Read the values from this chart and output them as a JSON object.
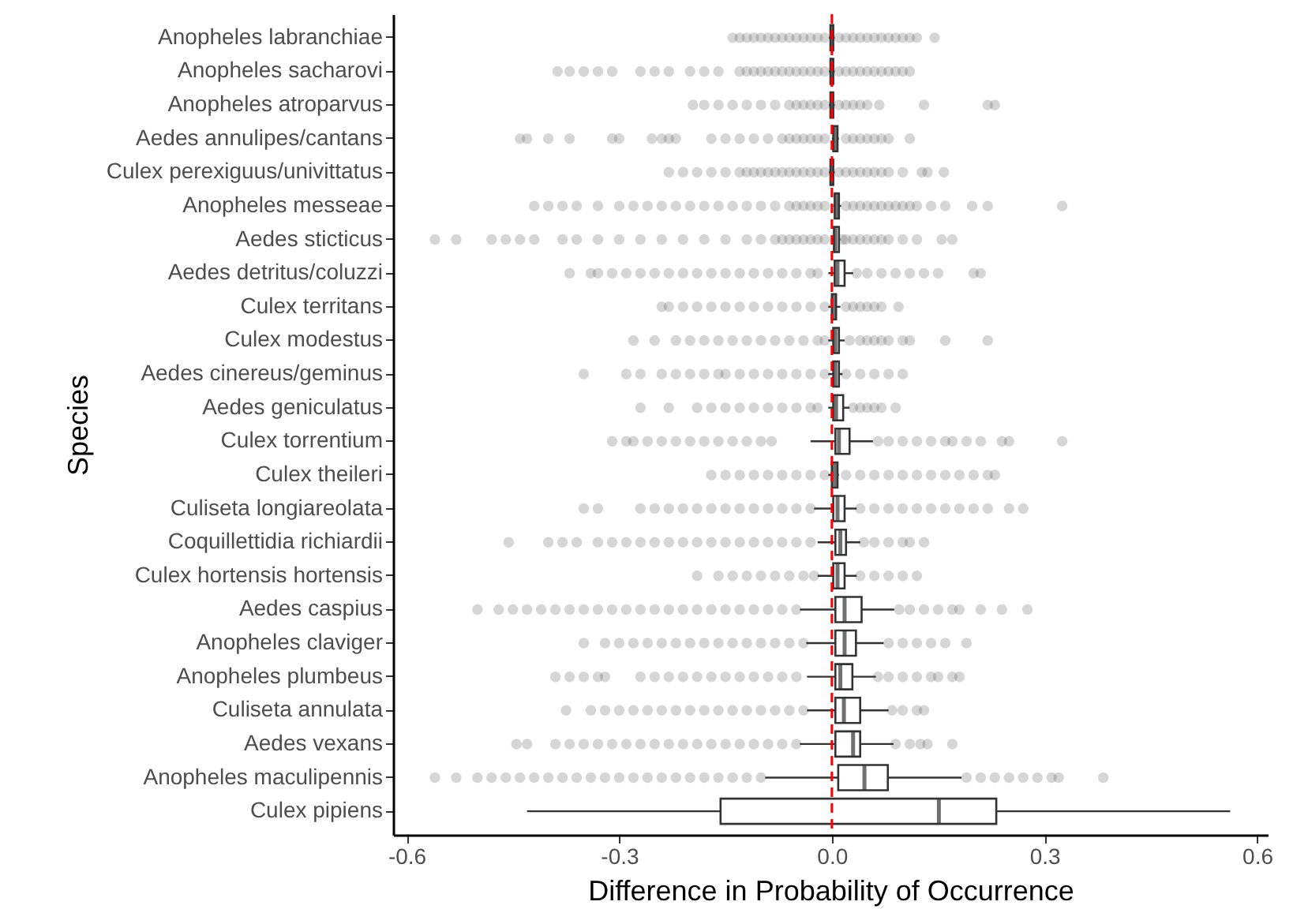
{
  "chart_data": {
    "type": "box",
    "orientation": "horizontal",
    "xlabel": "Difference in Probability of Occurrence",
    "ylabel": "Species",
    "categories": [
      "Anopheles labranchiae",
      "Anopheles sacharovi",
      "Anopheles atroparvus",
      "Aedes annulipes/cantans",
      "Culex perexiguus/univittatus",
      "Anopheles messeae",
      "Aedes sticticus",
      "Aedes detritus/coluzzi",
      "Culex territans",
      "Culex modestus",
      "Aedes cinereus/geminus",
      "Aedes geniculatus",
      "Culex torrentium",
      "Culex theileri",
      "Culiseta longiareolata",
      "Coquillettidia richiardii",
      "Culex hortensis hortensis",
      "Aedes caspius",
      "Anopheles claviger",
      "Anopheles plumbeus",
      "Culiseta annulata",
      "Aedes vexans",
      "Anopheles maculipennis",
      "Culex pipiens"
    ],
    "boxes": [
      {
        "low": -0.004,
        "q1": -0.002,
        "median": 0,
        "q3": 0.002,
        "high": 0.004,
        "outliers": [
          -0.14,
          -0.13,
          -0.12,
          -0.11,
          -0.1,
          -0.09,
          -0.08,
          -0.07,
          -0.06,
          -0.05,
          -0.04,
          -0.03,
          -0.02,
          -0.01,
          0.01,
          0.02,
          0.03,
          0.04,
          0.05,
          0.06,
          0.07,
          0.08,
          0.09,
          0.1,
          0.11,
          0.12,
          0.145
        ]
      },
      {
        "low": -0.004,
        "q1": -0.002,
        "median": 0,
        "q3": 0.002,
        "high": 0.004,
        "outliers": [
          -0.387,
          -0.37,
          -0.35,
          -0.33,
          -0.31,
          -0.27,
          -0.25,
          -0.23,
          -0.2,
          -0.18,
          -0.16,
          -0.13,
          -0.12,
          -0.11,
          -0.1,
          -0.09,
          -0.08,
          -0.07,
          -0.06,
          -0.05,
          -0.04,
          -0.03,
          -0.02,
          -0.01,
          0.01,
          0.02,
          0.03,
          0.04,
          0.05,
          0.06,
          0.07,
          0.08,
          0.09,
          0.1,
          0.11
        ]
      },
      {
        "low": -0.004,
        "q1": -0.002,
        "median": 0,
        "q3": 0.002,
        "high": 0.004,
        "outliers": [
          -0.196,
          -0.18,
          -0.16,
          -0.14,
          -0.12,
          -0.1,
          -0.08,
          -0.06,
          -0.05,
          -0.04,
          -0.03,
          -0.02,
          -0.01,
          0.01,
          0.02,
          0.03,
          0.04,
          0.05,
          0.067,
          0.13,
          0.22,
          0.23
        ]
      },
      {
        "low": 0,
        "q1": 0.002,
        "median": 0.004,
        "q3": 0.008,
        "high": 0.01,
        "outliers": [
          -0.44,
          -0.43,
          -0.4,
          -0.37,
          -0.31,
          -0.3,
          -0.254,
          -0.24,
          -0.23,
          -0.22,
          -0.17,
          -0.15,
          -0.13,
          -0.11,
          -0.09,
          -0.07,
          -0.06,
          -0.05,
          -0.04,
          -0.03,
          -0.02,
          -0.01,
          0.02,
          0.03,
          0.04,
          0.05,
          0.06,
          0.07,
          0.08,
          0.11
        ]
      },
      {
        "low": -0.004,
        "q1": -0.002,
        "median": 0,
        "q3": 0.002,
        "high": 0.004,
        "outliers": [
          -0.23,
          -0.21,
          -0.19,
          -0.17,
          -0.15,
          -0.13,
          -0.12,
          -0.11,
          -0.1,
          -0.09,
          -0.08,
          -0.07,
          -0.06,
          -0.05,
          -0.04,
          -0.03,
          -0.02,
          -0.01,
          0.01,
          0.02,
          0.03,
          0.04,
          0.05,
          0.06,
          0.07,
          0.08,
          0.1,
          0.127,
          0.135,
          0.158
        ]
      },
      {
        "low": 0.002,
        "q1": 0.004,
        "median": 0.007,
        "q3": 0.01,
        "high": 0.013,
        "outliers": [
          -0.42,
          -0.4,
          -0.38,
          -0.36,
          -0.33,
          -0.3,
          -0.28,
          -0.26,
          -0.24,
          -0.22,
          -0.2,
          -0.18,
          -0.16,
          -0.14,
          -0.12,
          -0.1,
          -0.08,
          -0.06,
          -0.05,
          -0.04,
          -0.03,
          -0.02,
          -0.01,
          0.02,
          0.03,
          0.04,
          0.05,
          0.06,
          0.07,
          0.08,
          0.09,
          0.1,
          0.11,
          0.12,
          0.14,
          0.16,
          0.198,
          0.22,
          0.325
        ]
      },
      {
        "low": 0,
        "q1": 0.003,
        "median": 0.005,
        "q3": 0.01,
        "high": 0.012,
        "outliers": [
          -0.56,
          -0.53,
          -0.48,
          -0.46,
          -0.44,
          -0.42,
          -0.38,
          -0.36,
          -0.33,
          -0.3,
          -0.27,
          -0.24,
          -0.21,
          -0.18,
          -0.15,
          -0.12,
          -0.1,
          -0.08,
          -0.07,
          -0.06,
          -0.05,
          -0.04,
          -0.03,
          -0.02,
          -0.01,
          0.015,
          0.02,
          0.03,
          0.04,
          0.05,
          0.06,
          0.07,
          0.08,
          0.1,
          0.12,
          0.155,
          0.17
        ]
      },
      {
        "low": -0.005,
        "q1": 0.004,
        "median": 0.008,
        "q3": 0.018,
        "high": 0.03,
        "outliers": [
          -0.37,
          -0.34,
          -0.33,
          -0.31,
          -0.29,
          -0.27,
          -0.25,
          -0.23,
          -0.21,
          -0.19,
          -0.17,
          -0.15,
          -0.13,
          -0.11,
          -0.09,
          -0.07,
          -0.05,
          -0.03,
          -0.02,
          0.035,
          0.05,
          0.07,
          0.09,
          0.11,
          0.13,
          0.15,
          0.2,
          0.21
        ]
      },
      {
        "low": -0.005,
        "q1": 0,
        "median": 0.003,
        "q3": 0.006,
        "high": 0.012,
        "outliers": [
          -0.24,
          -0.23,
          -0.21,
          -0.19,
          -0.17,
          -0.15,
          -0.13,
          -0.11,
          -0.09,
          -0.07,
          -0.05,
          -0.03,
          -0.01,
          0.02,
          0.03,
          0.04,
          0.05,
          0.06,
          0.07,
          0.094
        ]
      },
      {
        "low": -0.005,
        "q1": 0.002,
        "median": 0.005,
        "q3": 0.01,
        "high": 0.018,
        "outliers": [
          -0.28,
          -0.25,
          -0.22,
          -0.2,
          -0.18,
          -0.16,
          -0.14,
          -0.12,
          -0.1,
          -0.08,
          -0.06,
          -0.04,
          -0.02,
          -0.01,
          0.025,
          0.04,
          0.05,
          0.06,
          0.07,
          0.08,
          0.1,
          0.11,
          0.16,
          0.22
        ]
      },
      {
        "low": -0.005,
        "q1": 0.002,
        "median": 0.005,
        "q3": 0.01,
        "high": 0.015,
        "outliers": [
          -0.35,
          -0.29,
          -0.27,
          -0.24,
          -0.22,
          -0.2,
          -0.18,
          -0.16,
          -0.15,
          -0.13,
          -0.11,
          -0.09,
          -0.07,
          -0.05,
          -0.03,
          -0.01,
          0.02,
          0.04,
          0.06,
          0.08,
          0.1
        ]
      },
      {
        "low": -0.005,
        "q1": 0.002,
        "median": 0.006,
        "q3": 0.016,
        "high": 0.025,
        "outliers": [
          -0.27,
          -0.23,
          -0.19,
          -0.17,
          -0.15,
          -0.13,
          -0.11,
          -0.09,
          -0.07,
          -0.05,
          -0.03,
          -0.02,
          0.03,
          0.04,
          0.05,
          0.06,
          0.07,
          0.09
        ]
      },
      {
        "low": -0.03,
        "q1": 0.005,
        "median": 0.01,
        "q3": 0.025,
        "high": 0.058,
        "outliers": [
          -0.31,
          -0.29,
          -0.28,
          -0.26,
          -0.24,
          -0.22,
          -0.2,
          -0.18,
          -0.16,
          -0.14,
          -0.12,
          -0.1,
          -0.085,
          0.065,
          0.08,
          0.1,
          0.12,
          0.14,
          0.16,
          0.17,
          0.19,
          0.21,
          0.24,
          0.25,
          0.325
        ]
      },
      {
        "low": -0.005,
        "q1": 0,
        "median": 0.004,
        "q3": 0.008,
        "high": 0.01,
        "outliers": [
          -0.17,
          -0.15,
          -0.13,
          -0.11,
          -0.09,
          -0.07,
          -0.05,
          -0.03,
          -0.01,
          0.02,
          0.04,
          0.06,
          0.08,
          0.1,
          0.12,
          0.14,
          0.16,
          0.18,
          0.2,
          0.22,
          0.23
        ]
      },
      {
        "low": -0.025,
        "q1": 0.002,
        "median": 0.008,
        "q3": 0.018,
        "high": 0.035,
        "outliers": [
          -0.35,
          -0.33,
          -0.27,
          -0.25,
          -0.23,
          -0.21,
          -0.19,
          -0.17,
          -0.15,
          -0.13,
          -0.11,
          -0.09,
          -0.07,
          -0.05,
          -0.03,
          0.04,
          0.06,
          0.08,
          0.1,
          0.12,
          0.14,
          0.16,
          0.18,
          0.2,
          0.22,
          0.25,
          0.27
        ]
      },
      {
        "low": -0.02,
        "q1": 0.005,
        "median": 0.012,
        "q3": 0.02,
        "high": 0.04,
        "outliers": [
          -0.456,
          -0.4,
          -0.38,
          -0.36,
          -0.33,
          -0.31,
          -0.29,
          -0.27,
          -0.25,
          -0.23,
          -0.21,
          -0.19,
          -0.17,
          -0.15,
          -0.13,
          -0.11,
          -0.09,
          -0.07,
          -0.05,
          -0.03,
          0.045,
          0.06,
          0.08,
          0.1,
          0.11,
          0.13
        ]
      },
      {
        "low": -0.02,
        "q1": 0.002,
        "median": 0.008,
        "q3": 0.018,
        "high": 0.035,
        "outliers": [
          -0.19,
          -0.16,
          -0.14,
          -0.12,
          -0.1,
          -0.08,
          -0.06,
          -0.04,
          -0.025,
          0.04,
          0.06,
          0.08,
          0.1,
          0.12
        ]
      },
      {
        "low": -0.045,
        "q1": 0.005,
        "median": 0.018,
        "q3": 0.042,
        "high": 0.088,
        "outliers": [
          -0.5,
          -0.47,
          -0.45,
          -0.43,
          -0.41,
          -0.39,
          -0.37,
          -0.35,
          -0.33,
          -0.31,
          -0.29,
          -0.27,
          -0.25,
          -0.23,
          -0.21,
          -0.19,
          -0.17,
          -0.15,
          -0.13,
          -0.11,
          -0.09,
          -0.07,
          -0.05,
          0.095,
          0.11,
          0.13,
          0.15,
          0.17,
          0.18,
          0.21,
          0.24,
          0.276
        ]
      },
      {
        "low": -0.036,
        "q1": 0.005,
        "median": 0.018,
        "q3": 0.034,
        "high": 0.073,
        "outliers": [
          -0.35,
          -0.32,
          -0.3,
          -0.28,
          -0.26,
          -0.24,
          -0.22,
          -0.2,
          -0.18,
          -0.16,
          -0.14,
          -0.12,
          -0.1,
          -0.08,
          -0.06,
          -0.04,
          0.08,
          0.1,
          0.12,
          0.14,
          0.16,
          0.19
        ]
      },
      {
        "low": -0.035,
        "q1": 0.005,
        "median": 0.012,
        "q3": 0.029,
        "high": 0.062,
        "outliers": [
          -0.39,
          -0.37,
          -0.35,
          -0.33,
          -0.32,
          -0.27,
          -0.25,
          -0.23,
          -0.21,
          -0.19,
          -0.17,
          -0.15,
          -0.13,
          -0.11,
          -0.09,
          -0.07,
          -0.05,
          0.065,
          0.08,
          0.1,
          0.12,
          0.14,
          0.15,
          0.17,
          0.18
        ]
      },
      {
        "low": -0.035,
        "q1": 0.005,
        "median": 0.017,
        "q3": 0.04,
        "high": 0.08,
        "outliers": [
          -0.375,
          -0.34,
          -0.32,
          -0.3,
          -0.28,
          -0.26,
          -0.24,
          -0.22,
          -0.2,
          -0.18,
          -0.16,
          -0.14,
          -0.12,
          -0.1,
          -0.08,
          -0.06,
          -0.04,
          0.085,
          0.1,
          0.12,
          0.13
        ]
      },
      {
        "low": -0.045,
        "q1": 0.005,
        "median": 0.03,
        "q3": 0.04,
        "high": 0.087,
        "outliers": [
          -0.445,
          -0.43,
          -0.39,
          -0.37,
          -0.35,
          -0.33,
          -0.31,
          -0.29,
          -0.27,
          -0.25,
          -0.23,
          -0.21,
          -0.19,
          -0.17,
          -0.15,
          -0.13,
          -0.11,
          -0.09,
          -0.07,
          -0.05,
          0.09,
          0.11,
          0.125,
          0.135,
          0.17
        ]
      },
      {
        "low": -0.094,
        "q1": 0.009,
        "median": 0.046,
        "q3": 0.079,
        "high": 0.183,
        "outliers": [
          -0.56,
          -0.53,
          -0.5,
          -0.48,
          -0.46,
          -0.44,
          -0.42,
          -0.4,
          -0.38,
          -0.36,
          -0.34,
          -0.32,
          -0.3,
          -0.28,
          -0.26,
          -0.24,
          -0.22,
          -0.2,
          -0.18,
          -0.16,
          -0.14,
          -0.12,
          -0.1,
          0.19,
          0.21,
          0.23,
          0.25,
          0.27,
          0.29,
          0.31,
          0.32,
          0.383
        ]
      },
      {
        "low": -0.43,
        "q1": -0.157,
        "median": 0.151,
        "q3": 0.232,
        "high": 0.562
      }
    ],
    "xlim": [
      -0.619,
      0.615
    ],
    "xticks": [
      -0.6,
      -0.3,
      {
        "value": 0,
        "label": "0.0"
      },
      0.3,
      0.6
    ],
    "ref_lines": [
      {
        "axis": "x",
        "value": 0,
        "color": "#ff0000",
        "line_style": "dashed"
      }
    ],
    "grid": false
  }
}
